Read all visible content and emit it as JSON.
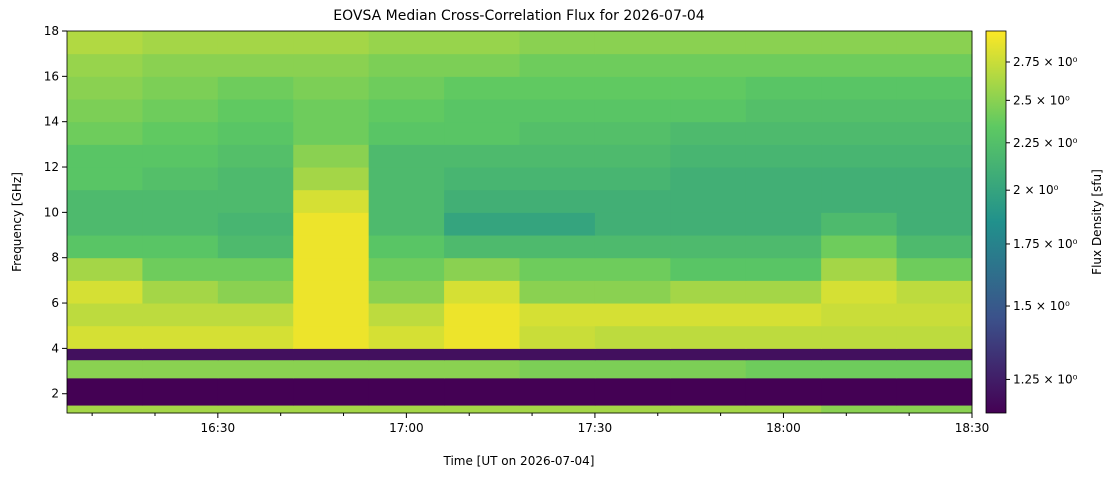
{
  "chart_data": {
    "type": "spectrogram",
    "title": "EOVSA Median Cross-Correlation Flux for 2026-07-04",
    "x_label": "Time [UT on 2026-07-04]",
    "y_label": "Frequency [GHz]",
    "colorbar_label": "Flux Density [sfu]",
    "colormap": "viridis",
    "colorbar_scale": "log",
    "time_bins": [
      966,
      978,
      990,
      1002,
      1014,
      1026,
      1038,
      1050,
      1062,
      1074,
      1086,
      1098,
      1110
    ],
    "freq_bins": [
      1.15,
      1.5,
      2.7,
      3.5,
      4.0,
      5,
      6,
      7,
      8,
      9,
      10,
      11,
      12,
      13,
      14,
      15,
      16,
      17,
      18
    ],
    "values": [
      [
        2.6,
        2.6,
        2.6,
        2.6,
        2.6,
        2.6,
        2.6,
        2.6,
        2.6,
        2.6,
        2.5,
        2.5
      ],
      [
        1.15,
        1.15,
        1.15,
        1.15,
        1.15,
        1.15,
        1.15,
        1.15,
        1.15,
        1.15,
        1.15,
        1.15
      ],
      [
        2.5,
        2.5,
        2.5,
        2.5,
        2.5,
        2.5,
        2.45,
        2.45,
        2.45,
        2.4,
        2.4,
        2.4
      ],
      [
        1.2,
        1.2,
        1.2,
        1.2,
        1.2,
        1.2,
        1.2,
        1.2,
        1.2,
        1.2,
        1.2,
        1.2
      ],
      [
        2.8,
        2.8,
        2.8,
        2.9,
        2.8,
        2.9,
        2.75,
        2.7,
        2.7,
        2.7,
        2.7,
        2.7
      ],
      [
        2.7,
        2.7,
        2.7,
        2.9,
        2.7,
        2.9,
        2.8,
        2.8,
        2.8,
        2.8,
        2.75,
        2.75
      ],
      [
        2.8,
        2.6,
        2.5,
        2.9,
        2.5,
        2.8,
        2.5,
        2.5,
        2.6,
        2.6,
        2.8,
        2.7
      ],
      [
        2.6,
        2.4,
        2.4,
        2.9,
        2.4,
        2.5,
        2.4,
        2.4,
        2.3,
        2.3,
        2.6,
        2.4
      ],
      [
        2.3,
        2.3,
        2.2,
        2.9,
        2.3,
        2.2,
        2.2,
        2.2,
        2.2,
        2.2,
        2.4,
        2.2
      ],
      [
        2.2,
        2.2,
        2.15,
        2.9,
        2.2,
        2.0,
        2.0,
        2.1,
        2.1,
        2.1,
        2.2,
        2.1
      ],
      [
        2.2,
        2.2,
        2.2,
        2.8,
        2.2,
        2.1,
        2.1,
        2.1,
        2.1,
        2.1,
        2.1,
        2.1
      ],
      [
        2.3,
        2.25,
        2.2,
        2.6,
        2.2,
        2.15,
        2.15,
        2.15,
        2.1,
        2.1,
        2.1,
        2.1
      ],
      [
        2.3,
        2.3,
        2.25,
        2.5,
        2.2,
        2.2,
        2.2,
        2.2,
        2.15,
        2.15,
        2.15,
        2.15
      ],
      [
        2.4,
        2.35,
        2.3,
        2.4,
        2.3,
        2.3,
        2.25,
        2.25,
        2.2,
        2.2,
        2.2,
        2.2
      ],
      [
        2.45,
        2.4,
        2.35,
        2.4,
        2.35,
        2.3,
        2.3,
        2.3,
        2.3,
        2.25,
        2.25,
        2.25
      ],
      [
        2.5,
        2.45,
        2.4,
        2.45,
        2.4,
        2.35,
        2.35,
        2.35,
        2.35,
        2.3,
        2.3,
        2.3
      ],
      [
        2.55,
        2.5,
        2.5,
        2.5,
        2.45,
        2.45,
        2.4,
        2.4,
        2.4,
        2.4,
        2.4,
        2.4
      ],
      [
        2.65,
        2.6,
        2.6,
        2.6,
        2.55,
        2.55,
        2.5,
        2.5,
        2.5,
        2.5,
        2.5,
        2.5
      ]
    ],
    "xlim": [
      966,
      1110
    ],
    "xticks": [
      {
        "value": 990,
        "label": "16:30"
      },
      {
        "value": 1020,
        "label": "17:00"
      },
      {
        "value": 1050,
        "label": "17:30"
      },
      {
        "value": 1080,
        "label": "18:00"
      },
      {
        "value": 1110,
        "label": "18:30"
      }
    ],
    "xminor_ticks": [
      970,
      980,
      1000,
      1010,
      1030,
      1040,
      1060,
      1070,
      1090,
      1100
    ],
    "ylim": [
      1.15,
      18
    ],
    "yticks": [
      2,
      4,
      6,
      8,
      10,
      12,
      14,
      16,
      18
    ],
    "clim": [
      1.15,
      2.97
    ],
    "cticks": [
      {
        "value": 1.25,
        "label": "1.25 × 10⁰"
      },
      {
        "value": 1.5,
        "label": "1.5 × 10⁰"
      },
      {
        "value": 1.75,
        "label": "1.75 × 10⁰"
      },
      {
        "value": 2,
        "label": "2 × 10⁰"
      },
      {
        "value": 2.25,
        "label": "2.25 × 10⁰"
      },
      {
        "value": 2.5,
        "label": "2.5 × 10⁰"
      },
      {
        "value": 2.75,
        "label": "2.75 × 10⁰"
      }
    ]
  }
}
